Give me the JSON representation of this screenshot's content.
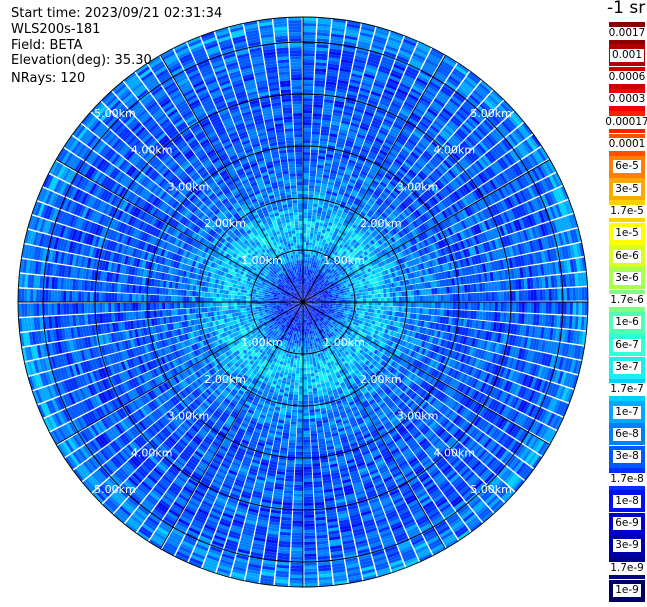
{
  "header": {
    "start_time": "Start time: 2023/09/21 02:31:34",
    "instrument": "WLS200s-181",
    "field": "Field: BETA",
    "elevation": "Elevation(deg): 35.30",
    "nrays": "NRays: 120"
  },
  "chart_data": {
    "type": "heatmap",
    "projection": "polar (PPI scan)",
    "title": "",
    "field": "BETA",
    "n_rays": 120,
    "elevation_deg": 35.3,
    "range_rings_km": [
      1,
      2,
      3,
      4,
      5
    ],
    "range_ring_labels": [
      "1.00km",
      "2.00km",
      "3.00km",
      "4.00km",
      "5.00km"
    ],
    "max_range_km": 5.7,
    "spokes_deg": [
      0,
      30,
      60,
      90,
      120,
      150,
      180,
      210,
      240,
      270,
      300,
      330
    ],
    "radial_profile": [
      {
        "range_km": 0.0,
        "beta": 1e-08
      },
      {
        "range_km": 0.5,
        "beta": 1.7e-08
      },
      {
        "range_km": 1.0,
        "beta": 1e-07
      },
      {
        "range_km": 1.5,
        "beta": 1.7e-07
      },
      {
        "range_km": 2.0,
        "beta": 6e-08
      },
      {
        "range_km": 3.0,
        "beta": 3e-08
      },
      {
        "range_km": 4.0,
        "beta": 3e-08
      },
      {
        "range_km": 5.0,
        "beta": 3e-08
      },
      {
        "range_km": 5.5,
        "beta": 6e-08
      }
    ],
    "colorbar": {
      "title": "-1 sr",
      "scale": "log",
      "levels": [
        {
          "label": "0.0017",
          "color": "#8b0000"
        },
        {
          "label": "0.001",
          "color": "#b00000"
        },
        {
          "label": "0.0006",
          "color": "#d00000"
        },
        {
          "label": "0.0003",
          "color": "#f00000"
        },
        {
          "label": "0.00017",
          "color": "#ff2000"
        },
        {
          "label": "0.0001",
          "color": "#ff5000"
        },
        {
          "label": "6e-5",
          "color": "#ff8000"
        },
        {
          "label": "3e-5",
          "color": "#ffa800"
        },
        {
          "label": "1.7e-5",
          "color": "#ffd000"
        },
        {
          "label": "1e-5",
          "color": "#ffff00"
        },
        {
          "label": "6e-6",
          "color": "#d8ff20"
        },
        {
          "label": "3e-6",
          "color": "#a8ff50"
        },
        {
          "label": "1.7e-6",
          "color": "#80ff80"
        },
        {
          "label": "1e-6",
          "color": "#50ffb0"
        },
        {
          "label": "6e-7",
          "color": "#30ffd8"
        },
        {
          "label": "3e-7",
          "color": "#18f0f0"
        },
        {
          "label": "1.7e-7",
          "color": "#00d0ff"
        },
        {
          "label": "1e-7",
          "color": "#00a8ff"
        },
        {
          "label": "6e-8",
          "color": "#0080ff"
        },
        {
          "label": "3e-8",
          "color": "#0058ff"
        },
        {
          "label": "1.7e-8",
          "color": "#0030ff"
        },
        {
          "label": "1e-8",
          "color": "#0010f0"
        },
        {
          "label": "6e-9",
          "color": "#0000d0"
        },
        {
          "label": "3e-9",
          "color": "#0000a8"
        },
        {
          "label": "1.7e-9",
          "color": "#000088"
        },
        {
          "label": "1e-9",
          "color": "#000060"
        }
      ]
    }
  }
}
